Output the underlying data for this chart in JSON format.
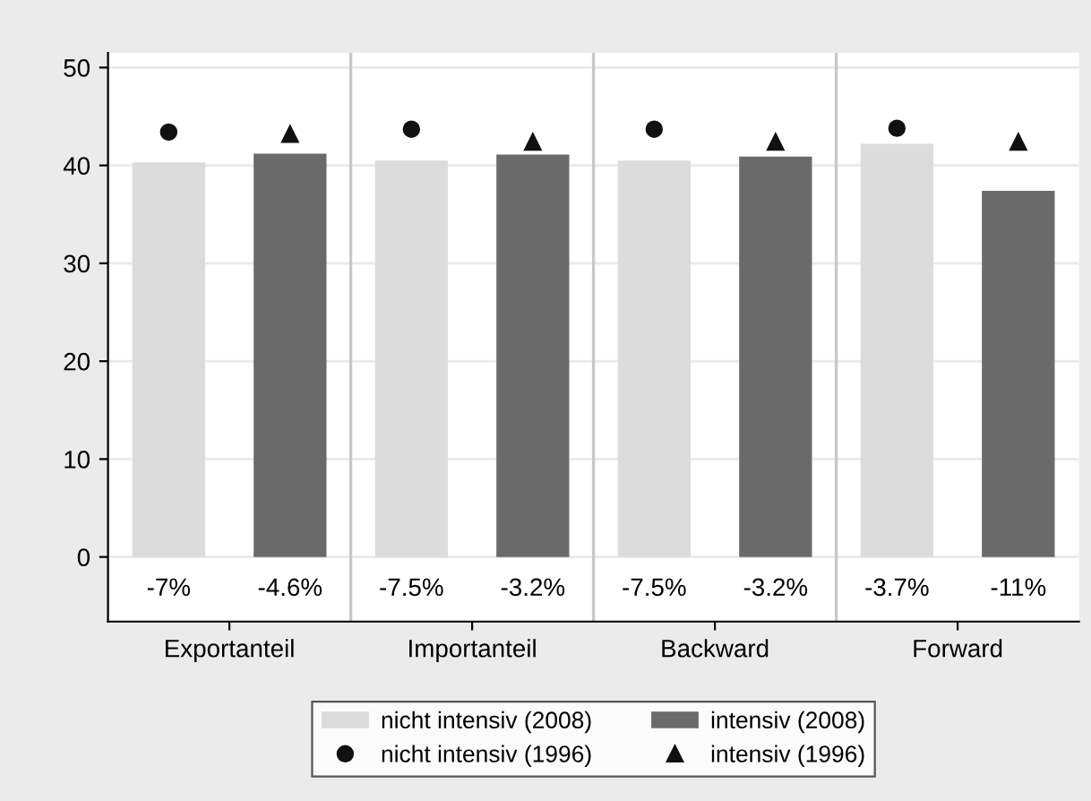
{
  "chart_data": {
    "type": "bar",
    "categories": [
      "Exportanteil",
      "Importanteil",
      "Backward",
      "Forward"
    ],
    "series": [
      {
        "name": "nicht intensiv (2008)",
        "color": "#dcdcdc",
        "values": [
          40.3,
          40.5,
          40.5,
          42.2
        ]
      },
      {
        "name": "intensiv (2008)",
        "color": "#6a6a6a",
        "values": [
          41.2,
          41.1,
          40.9,
          37.4
        ]
      },
      {
        "name": "nicht intensiv (1996)",
        "type": "scatter",
        "marker": "circle",
        "color": "#111111",
        "values": [
          43.4,
          43.7,
          43.7,
          43.8
        ]
      },
      {
        "name": "intensiv (1996)",
        "type": "scatter",
        "marker": "triangle",
        "color": "#111111",
        "values": [
          43.2,
          42.4,
          42.4,
          42.4
        ]
      }
    ],
    "annotations": [
      "-7%",
      "-4.6%",
      "-7.5%",
      "-3.2%",
      "-7.5%",
      "-3.2%",
      "-3.7%",
      "-11%"
    ],
    "ylim": [
      -6.6,
      51.5
    ],
    "yticks": [
      0,
      10,
      20,
      30,
      40,
      50
    ],
    "grid": "y",
    "legend": "bottom"
  }
}
